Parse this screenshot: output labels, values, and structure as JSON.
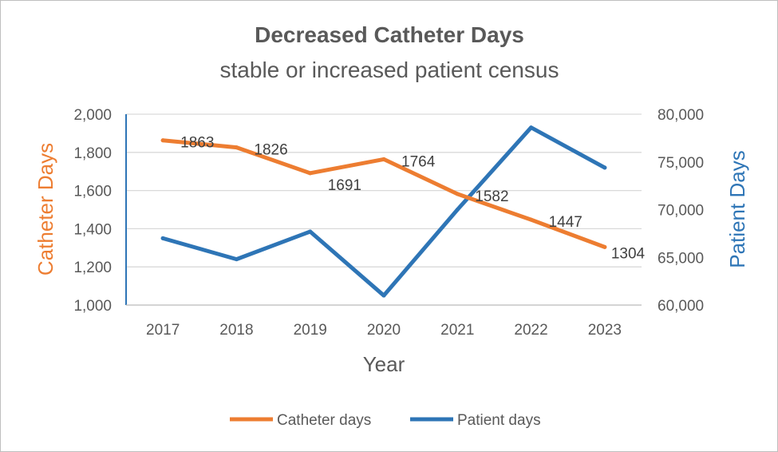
{
  "chart_data": {
    "type": "line",
    "title": "Decreased Catheter Days",
    "subtitle": "stable or increased patient census",
    "xlabel": "Year",
    "ylabel_left": "Catheter Days",
    "ylabel_right": "Patient Days",
    "categories": [
      "2017",
      "2018",
      "2019",
      "2020",
      "2021",
      "2022",
      "2023"
    ],
    "y_left": {
      "range": [
        1000,
        2000
      ],
      "ticks": [
        1000,
        1200,
        1400,
        1600,
        1800,
        2000
      ],
      "tick_labels": [
        "1,000",
        "1,200",
        "1,400",
        "1,600",
        "1,800",
        "2,000"
      ]
    },
    "y_right": {
      "range": [
        60000,
        80000
      ],
      "ticks": [
        60000,
        65000,
        70000,
        75000,
        80000
      ],
      "tick_labels": [
        "60,000",
        "65,000",
        "70,000",
        "75,000",
        "80,000"
      ]
    },
    "grid": true,
    "legend_position": "bottom",
    "series": [
      {
        "name": "Catheter days",
        "axis": "left",
        "color": "#ED7D31",
        "values": [
          1863,
          1826,
          1691,
          1764,
          1582,
          1447,
          1304
        ],
        "data_labels": [
          "1863",
          "1826",
          "1691",
          "1764",
          "1582",
          "1447",
          "1304"
        ]
      },
      {
        "name": "Patient days",
        "axis": "right",
        "color": "#2E75B6",
        "values": [
          67000,
          64800,
          67700,
          61000,
          70000,
          78600,
          74400
        ]
      }
    ]
  }
}
